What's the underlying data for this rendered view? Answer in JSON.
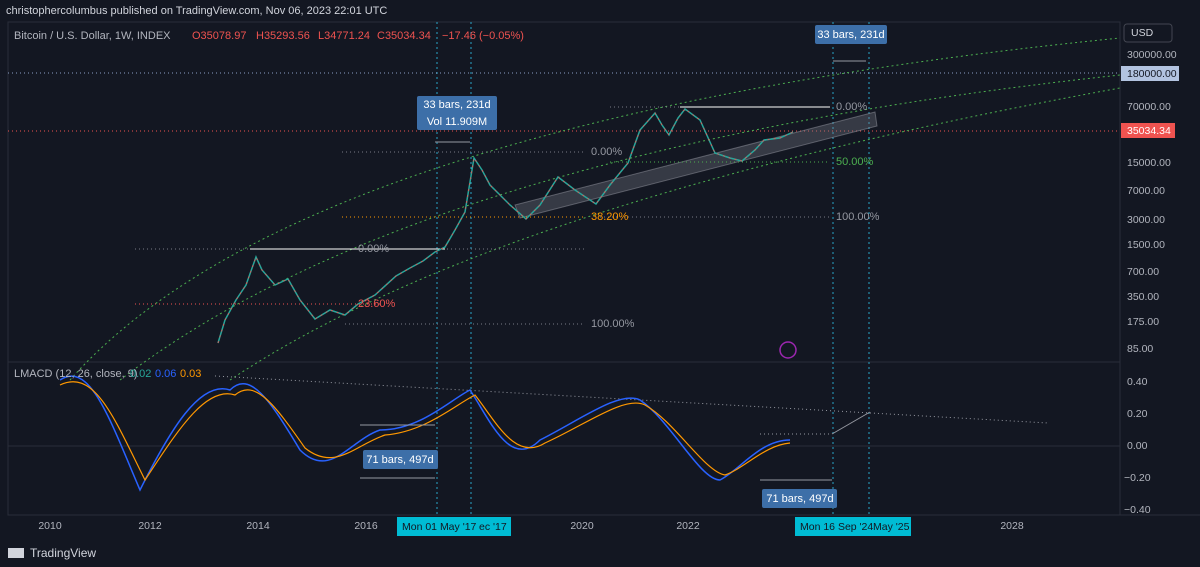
{
  "header": {
    "publisher": "christophercolumbus published on TradingView.com, Nov 06, 2023 22:01 UTC",
    "symbol": "Bitcoin / U.S. Dollar, 1W, INDEX",
    "open": "O35078.97",
    "high": "H35293.56",
    "low": "L34771.24",
    "close": "C35034.34",
    "change": "−17.46 (−0.05%)"
  },
  "price_axis": {
    "currency": "USD",
    "labels": [
      "300000.00",
      "180000.00",
      "70000.00",
      "35034.34",
      "15000.00",
      "7000.00",
      "3000.00",
      "1500.00",
      "700.00",
      "350.00",
      "175.00",
      "85.00"
    ]
  },
  "indicator": {
    "name": "LMACD (12, 26, close, 9)",
    "values": [
      "0.02",
      "0.06",
      "0.03"
    ],
    "axis_labels": [
      "0.40",
      "0.20",
      "0.00",
      "−0.20",
      "−0.40"
    ]
  },
  "time_axis": {
    "labels": [
      "2010",
      "2012",
      "2014",
      "2016",
      "2020",
      "2022",
      "2028"
    ],
    "badges": [
      "Mon 01 May '17",
      "ec '17",
      "Mon 16 Sep '24",
      "May '25"
    ]
  },
  "annotations": {
    "bars_top": "33 bars, 231d",
    "bars_mid": "33 bars, 231d",
    "volume": "Vol 11.909M",
    "macd_bars_left": "71 bars, 497d",
    "macd_bars_right": "71 bars, 497d",
    "fib": [
      "0.00%",
      "23.60%",
      "100.00%",
      "0.00%",
      "38.20%",
      "100.00%",
      "0.00%",
      "50.00%"
    ]
  },
  "footer": {
    "brand": "TradingView"
  }
}
